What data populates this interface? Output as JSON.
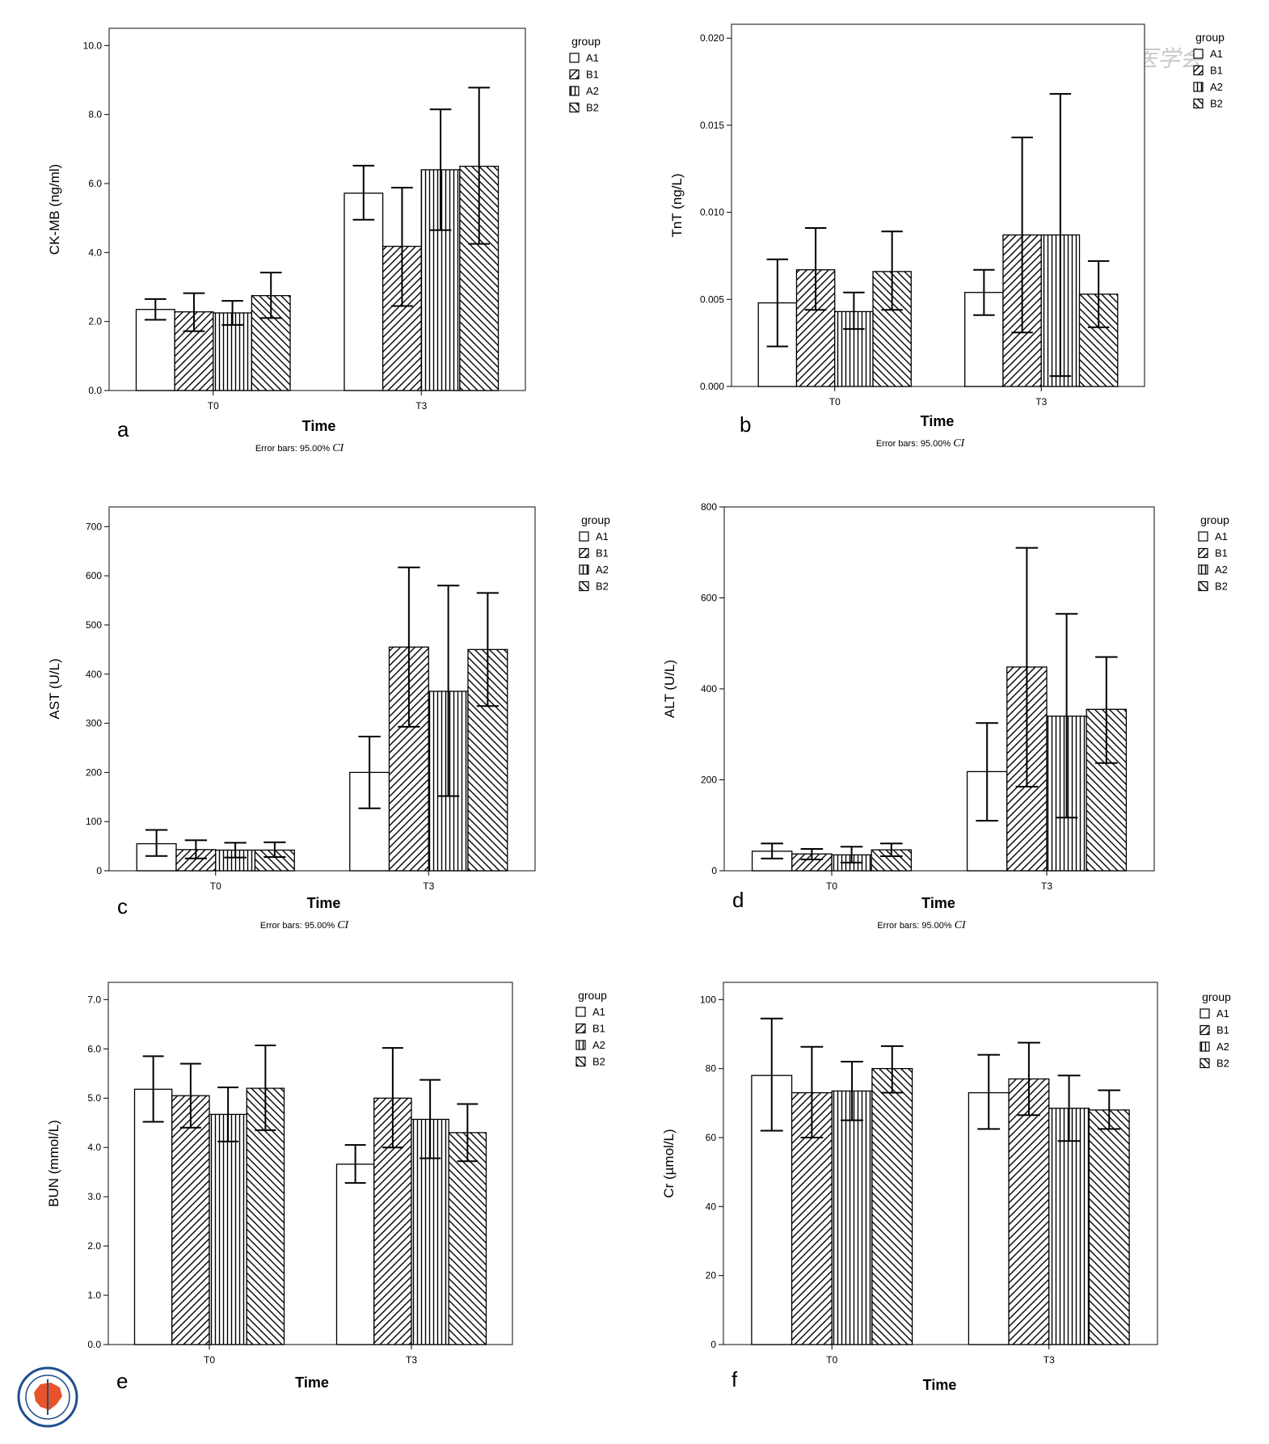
{
  "figure": {
    "legend_title": "group",
    "groups": [
      {
        "name": "A1",
        "pattern": "none"
      },
      {
        "name": "B1",
        "pattern": "diag-up"
      },
      {
        "name": "A2",
        "pattern": "vertical"
      },
      {
        "name": "B2",
        "pattern": "diag-down"
      }
    ],
    "error_note": "Error bars: 95.00%",
    "error_note_ci": "CI",
    "colors": {
      "ink": "#000000",
      "frame": "#333333",
      "background": "#ffffff",
      "watermark": "#c9c9c9",
      "logo_red": "#c0392b"
    },
    "watermark": "中华医学会",
    "logo": "Chinese Medical Association seal"
  },
  "chart_data": [
    {
      "type": "bar",
      "panel": "a",
      "categories": [
        "T0",
        "T3"
      ],
      "xlabel": "Time",
      "ylabel": "CK-MB (ng/ml)",
      "ylim": [
        0,
        10.5
      ],
      "yticks": [
        0,
        2,
        4,
        6,
        8,
        10
      ],
      "ytick_labels": [
        "0.0",
        "2.0",
        "4.0",
        "6.0",
        "8.0",
        "10.0"
      ],
      "show_note": true,
      "series": [
        {
          "name": "A1",
          "values": [
            2.35,
            5.72
          ],
          "lower": [
            2.05,
            4.95
          ],
          "upper": [
            2.65,
            6.52
          ]
        },
        {
          "name": "B1",
          "values": [
            2.28,
            4.18
          ],
          "lower": [
            1.72,
            2.45
          ],
          "upper": [
            2.82,
            5.88
          ]
        },
        {
          "name": "A2",
          "values": [
            2.25,
            6.4
          ],
          "lower": [
            1.9,
            4.65
          ],
          "upper": [
            2.6,
            8.15
          ]
        },
        {
          "name": "B2",
          "values": [
            2.75,
            6.5
          ],
          "lower": [
            2.1,
            4.25
          ],
          "upper": [
            3.42,
            8.78
          ]
        }
      ]
    },
    {
      "type": "bar",
      "panel": "b",
      "categories": [
        "T0",
        "T3"
      ],
      "xlabel": "Time",
      "ylabel": "TnT (ng/L)",
      "ylim": [
        0,
        0.0208
      ],
      "yticks": [
        0,
        0.005,
        0.01,
        0.015,
        0.02
      ],
      "ytick_labels": [
        "0.000",
        "0.005",
        "0.010",
        "0.015",
        "0.020"
      ],
      "show_note": true,
      "series": [
        {
          "name": "A1",
          "values": [
            0.0048,
            0.0054
          ],
          "lower": [
            0.0023,
            0.0041
          ],
          "upper": [
            0.0073,
            0.0067
          ]
        },
        {
          "name": "B1",
          "values": [
            0.0067,
            0.0087
          ],
          "lower": [
            0.0044,
            0.0031
          ],
          "upper": [
            0.0091,
            0.0143
          ]
        },
        {
          "name": "A2",
          "values": [
            0.0043,
            0.0087
          ],
          "lower": [
            0.0033,
            0.0006
          ],
          "upper": [
            0.0054,
            0.0168
          ]
        },
        {
          "name": "B2",
          "values": [
            0.0066,
            0.0053
          ],
          "lower": [
            0.0044,
            0.0034
          ],
          "upper": [
            0.0089,
            0.0072
          ]
        }
      ]
    },
    {
      "type": "bar",
      "panel": "c",
      "categories": [
        "T0",
        "T3"
      ],
      "xlabel": "Time",
      "ylabel": "AST (U/L)",
      "ylim": [
        0,
        740
      ],
      "yticks": [
        0,
        100,
        200,
        300,
        400,
        500,
        600,
        700
      ],
      "ytick_labels": [
        "0",
        "100",
        "200",
        "300",
        "400",
        "500",
        "600",
        "700"
      ],
      "show_note": true,
      "series": [
        {
          "name": "A1",
          "values": [
            55,
            200
          ],
          "lower": [
            30,
            127
          ],
          "upper": [
            83,
            273
          ]
        },
        {
          "name": "B1",
          "values": [
            43,
            455
          ],
          "lower": [
            25,
            293
          ],
          "upper": [
            62,
            617
          ]
        },
        {
          "name": "A2",
          "values": [
            42,
            365
          ],
          "lower": [
            27,
            152
          ],
          "upper": [
            57,
            580
          ]
        },
        {
          "name": "B2",
          "values": [
            42,
            450
          ],
          "lower": [
            28,
            335
          ],
          "upper": [
            58,
            565
          ]
        }
      ]
    },
    {
      "type": "bar",
      "panel": "d",
      "categories": [
        "T0",
        "T3"
      ],
      "xlabel": "Time",
      "ylabel": "ALT (U/L)",
      "ylim": [
        0,
        800
      ],
      "yticks": [
        0,
        200,
        400,
        600,
        800
      ],
      "ytick_labels": [
        "0",
        "200",
        "400",
        "600",
        "800"
      ],
      "show_note": true,
      "series": [
        {
          "name": "A1",
          "values": [
            43,
            218
          ],
          "lower": [
            27,
            110
          ],
          "upper": [
            60,
            325
          ]
        },
        {
          "name": "B1",
          "values": [
            37,
            448
          ],
          "lower": [
            25,
            185
          ],
          "upper": [
            48,
            710
          ]
        },
        {
          "name": "A2",
          "values": [
            35,
            340
          ],
          "lower": [
            18,
            117
          ],
          "upper": [
            53,
            565
          ]
        },
        {
          "name": "B2",
          "values": [
            46,
            355
          ],
          "lower": [
            32,
            237
          ],
          "upper": [
            60,
            470
          ]
        }
      ]
    },
    {
      "type": "bar",
      "panel": "e",
      "categories": [
        "T0",
        "T3"
      ],
      "xlabel": "Time",
      "ylabel": "BUN (mmol/L)",
      "ylim": [
        0,
        7.35
      ],
      "yticks": [
        0,
        1,
        2,
        3,
        4,
        5,
        6,
        7
      ],
      "ytick_labels": [
        "0.0",
        "1.0",
        "2.0",
        "3.0",
        "4.0",
        "5.0",
        "6.0",
        "7.0"
      ],
      "show_note": false,
      "series": [
        {
          "name": "A1",
          "values": [
            5.18,
            3.66
          ],
          "lower": [
            4.52,
            3.28
          ],
          "upper": [
            5.85,
            4.05
          ]
        },
        {
          "name": "B1",
          "values": [
            5.05,
            5.0
          ],
          "lower": [
            4.4,
            4.0
          ],
          "upper": [
            5.7,
            6.02
          ]
        },
        {
          "name": "A2",
          "values": [
            4.67,
            4.57
          ],
          "lower": [
            4.12,
            3.78
          ],
          "upper": [
            5.22,
            5.37
          ]
        },
        {
          "name": "B2",
          "values": [
            5.2,
            4.3
          ],
          "lower": [
            4.35,
            3.72
          ],
          "upper": [
            6.07,
            4.88
          ]
        }
      ]
    },
    {
      "type": "bar",
      "panel": "f",
      "categories": [
        "T0",
        "T3"
      ],
      "xlabel": "Time",
      "ylabel": "Cr (µmol/L)",
      "ylim": [
        0,
        105
      ],
      "yticks": [
        0,
        20,
        40,
        60,
        80,
        100
      ],
      "ytick_labels": [
        "0",
        "20",
        "40",
        "60",
        "80",
        "100"
      ],
      "show_note": false,
      "series": [
        {
          "name": "A1",
          "values": [
            78,
            73
          ],
          "lower": [
            62,
            62.5
          ],
          "upper": [
            94.5,
            84
          ]
        },
        {
          "name": "B1",
          "values": [
            73,
            77
          ],
          "lower": [
            60,
            66.5
          ],
          "upper": [
            86.3,
            87.5
          ]
        },
        {
          "name": "A2",
          "values": [
            73.5,
            68.5
          ],
          "lower": [
            65,
            59
          ],
          "upper": [
            82,
            78
          ]
        },
        {
          "name": "B2",
          "values": [
            80,
            68
          ],
          "lower": [
            73,
            62.5
          ],
          "upper": [
            86.5,
            73.7
          ]
        }
      ]
    }
  ]
}
